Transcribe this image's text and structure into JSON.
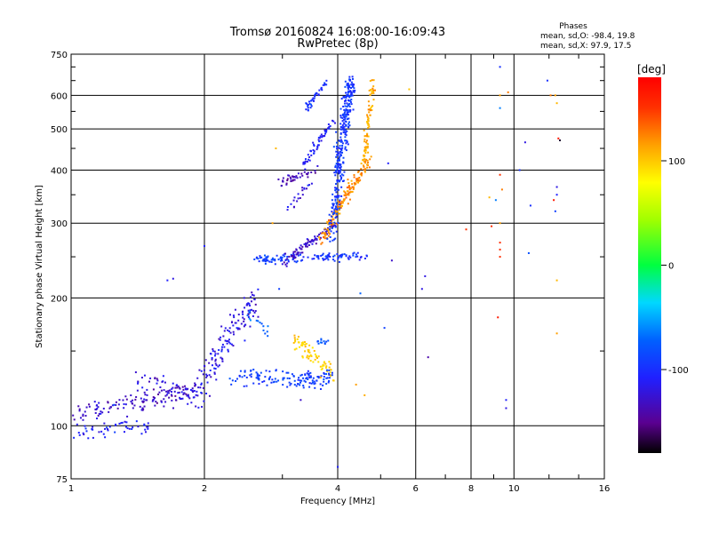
{
  "chart_data": {
    "type": "scatter",
    "title": "Tromsø 20160824 16:08:00-16:09:43",
    "subtitle": "RwPretec (8p)",
    "xlabel": "Frequency [MHz]",
    "ylabel": "Stationary phase Virtual Height [km]",
    "x_scale": "log",
    "y_scale": "log",
    "xlim": [
      1,
      16
    ],
    "ylim": [
      75,
      750
    ],
    "x_ticks": [
      1,
      2,
      4,
      6,
      8,
      10,
      16
    ],
    "x_tick_labels": [
      "1",
      "2",
      "4",
      "6",
      "8",
      "10",
      "16"
    ],
    "y_ticks": [
      75,
      100,
      200,
      300,
      400,
      500,
      600,
      750
    ],
    "y_tick_labels": [
      "75",
      "100",
      "200",
      "300",
      "400",
      "500",
      "600",
      "750"
    ],
    "grid": true,
    "stats": {
      "title": "Phases",
      "line_o": "mean, sd,O: -98.4, 19.8",
      "line_x": "mean, sd,X: 97.9, 17.5"
    },
    "colorbar": {
      "label": "[deg]",
      "range": [
        -180,
        180
      ],
      "ticks": [
        100,
        0,
        -100
      ],
      "tick_labels": [
        "100",
        "0",
        "-100"
      ]
    },
    "traces": [
      {
        "x0": 1.0,
        "x1": 1.9,
        "h0": 106,
        "h1": 120,
        "phase": -130,
        "sx": 0.03,
        "sh": 4,
        "n": 130
      },
      {
        "x0": 1.0,
        "x1": 1.5,
        "h0": 96,
        "h1": 100,
        "phase": -110,
        "sx": 0.02,
        "sh": 3,
        "n": 50
      },
      {
        "x0": 1.4,
        "x1": 2.0,
        "h0": 128,
        "h1": 118,
        "phase": -125,
        "sx": 0.03,
        "sh": 5,
        "n": 60
      },
      {
        "x0": 1.9,
        "x1": 2.6,
        "h0": 120,
        "h1": 195,
        "phase": -120,
        "sx": 0.04,
        "sh": 12,
        "n": 140
      },
      {
        "x0": 2.3,
        "x1": 3.8,
        "h0": 130,
        "h1": 128,
        "phase": -90,
        "sx": 0.04,
        "sh": 4,
        "n": 110
      },
      {
        "x0": 2.5,
        "x1": 2.8,
        "h0": 185,
        "h1": 165,
        "phase": -70,
        "sx": 0.02,
        "sh": 4,
        "n": 15
      },
      {
        "x0": 3.2,
        "x1": 3.9,
        "h0": 160,
        "h1": 132,
        "phase": 110,
        "sx": 0.03,
        "sh": 5,
        "n": 70
      },
      {
        "x0": 3.3,
        "x1": 3.9,
        "h0": 128,
        "h1": 132,
        "phase": -95,
        "sx": 0.03,
        "sh": 3,
        "n": 30
      },
      {
        "x0": 3.6,
        "x1": 3.8,
        "h0": 158,
        "h1": 158,
        "phase": -80,
        "sx": 0.01,
        "sh": 2,
        "n": 12
      },
      {
        "x0": 2.6,
        "x1": 3.4,
        "h0": 247,
        "h1": 248,
        "phase": -90,
        "sx": 0.03,
        "sh": 4,
        "n": 60
      },
      {
        "x0": 3.0,
        "x1": 4.0,
        "h0": 240,
        "h1": 300,
        "phase": -130,
        "sx": 0.03,
        "sh": 5,
        "n": 90
      },
      {
        "x0": 3.5,
        "x1": 4.6,
        "h0": 250,
        "h1": 250,
        "phase": -100,
        "sx": 0.04,
        "sh": 4,
        "n": 60
      },
      {
        "x0": 3.7,
        "x1": 4.7,
        "h0": 275,
        "h1": 420,
        "phase": 135,
        "sx": 0.03,
        "sh": 8,
        "n": 160
      },
      {
        "x0": 4.6,
        "x1": 4.8,
        "h0": 420,
        "h1": 640,
        "phase": 125,
        "sx": 0.02,
        "sh": 15,
        "n": 80
      },
      {
        "x0": 3.9,
        "x1": 4.3,
        "h0": 280,
        "h1": 650,
        "phase": -95,
        "sx": 0.04,
        "sh": 20,
        "n": 320
      },
      {
        "x0": 2.9,
        "x1": 3.6,
        "h0": 370,
        "h1": 400,
        "phase": -135,
        "sx": 0.02,
        "sh": 6,
        "n": 40
      },
      {
        "x0": 3.3,
        "x1": 3.9,
        "h0": 400,
        "h1": 520,
        "phase": -110,
        "sx": 0.02,
        "sh": 10,
        "n": 55
      },
      {
        "x0": 3.4,
        "x1": 3.8,
        "h0": 560,
        "h1": 650,
        "phase": -100,
        "sx": 0.02,
        "sh": 10,
        "n": 40
      },
      {
        "x0": 3.1,
        "x1": 3.5,
        "h0": 320,
        "h1": 380,
        "phase": -120,
        "sx": 0.02,
        "sh": 8,
        "n": 20
      }
    ],
    "outliers": [
      [
        1.25,
        112,
        -80
      ],
      [
        1.65,
        220,
        -110
      ],
      [
        1.7,
        222,
        -120
      ],
      [
        2.0,
        265,
        -110
      ],
      [
        2.9,
        450,
        120
      ],
      [
        2.85,
        300,
        130
      ],
      [
        2.95,
        210,
        -90
      ],
      [
        3.3,
        115,
        -130
      ],
      [
        4.0,
        80,
        -110
      ],
      [
        4.4,
        125,
        130
      ],
      [
        4.5,
        205,
        -70
      ],
      [
        4.6,
        118,
        125
      ],
      [
        5.1,
        170,
        -90
      ],
      [
        5.2,
        415,
        -110
      ],
      [
        5.3,
        245,
        -130
      ],
      [
        5.8,
        620,
        115
      ],
      [
        6.2,
        210,
        -120
      ],
      [
        6.4,
        145,
        -140
      ],
      [
        6.3,
        225,
        -120
      ],
      [
        7.8,
        290,
        160
      ],
      [
        8.8,
        345,
        120
      ],
      [
        8.9,
        295,
        160
      ],
      [
        9.1,
        340,
        -60
      ],
      [
        9.2,
        180,
        170
      ],
      [
        9.3,
        700,
        -100
      ],
      [
        9.3,
        600,
        130
      ],
      [
        9.3,
        560,
        -60
      ],
      [
        9.3,
        390,
        160
      ],
      [
        9.3,
        300,
        130
      ],
      [
        9.3,
        270,
        160
      ],
      [
        9.3,
        260,
        160
      ],
      [
        9.3,
        250,
        160
      ],
      [
        9.4,
        360,
        140
      ],
      [
        9.6,
        110,
        -120
      ],
      [
        9.6,
        115,
        -110
      ],
      [
        9.7,
        610,
        140
      ],
      [
        10.3,
        400,
        -100
      ],
      [
        10.6,
        465,
        -120
      ],
      [
        10.8,
        255,
        -80
      ],
      [
        10.9,
        330,
        -100
      ],
      [
        11.9,
        650,
        -100
      ],
      [
        12.1,
        600,
        140
      ],
      [
        12.4,
        600,
        130
      ],
      [
        12.5,
        575,
        120
      ],
      [
        12.3,
        340,
        170
      ],
      [
        12.4,
        320,
        -90
      ],
      [
        12.5,
        350,
        -110
      ],
      [
        12.5,
        365,
        -120
      ],
      [
        12.6,
        475,
        170
      ],
      [
        12.7,
        470,
        -170
      ],
      [
        12.5,
        220,
        120
      ],
      [
        12.5,
        165,
        130
      ]
    ]
  }
}
